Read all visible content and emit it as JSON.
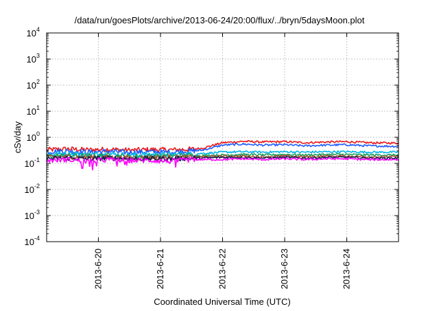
{
  "chart_data": {
    "type": "line",
    "title": "/data/run/goesPlots/archive/2013-06-24/20:00/flux/../bryn/5daysMoon.plot",
    "xlabel": "Coordinated Universal Time (UTC)",
    "ylabel": "cSv/day",
    "yscale": "log",
    "ylim": [
      0.0001,
      10000
    ],
    "y_ticks": [
      {
        "base": "10",
        "exp": "-4",
        "value": 0.0001
      },
      {
        "base": "10",
        "exp": "-3",
        "value": 0.001
      },
      {
        "base": "10",
        "exp": "-2",
        "value": 0.01
      },
      {
        "base": "10",
        "exp": "-1",
        "value": 0.1
      },
      {
        "base": "10",
        "exp": "0",
        "value": 1
      },
      {
        "base": "10",
        "exp": "1",
        "value": 10
      },
      {
        "base": "10",
        "exp": "2",
        "value": 100
      },
      {
        "base": "10",
        "exp": "3",
        "value": 1000
      },
      {
        "base": "10",
        "exp": "4",
        "value": 10000
      }
    ],
    "xlim": [
      "2013-06-19T04:00",
      "2013-06-24T20:00"
    ],
    "x_ticks": [
      {
        "label": "2013-6-20",
        "value": "2013-06-20T00:00"
      },
      {
        "label": "2013-6-21",
        "value": "2013-06-21T00:00"
      },
      {
        "label": "2013-6-22",
        "value": "2013-06-22T00:00"
      },
      {
        "label": "2013-6-23",
        "value": "2013-06-23T00:00"
      },
      {
        "label": "2013-6-24",
        "value": "2013-06-24T00:00"
      }
    ],
    "grid": true,
    "legend": "none",
    "x": [
      "2013-06-19T04:00",
      "2013-06-19T12:00",
      "2013-06-19T20:00",
      "2013-06-20T04:00",
      "2013-06-20T12:00",
      "2013-06-20T20:00",
      "2013-06-21T04:00",
      "2013-06-21T12:00",
      "2013-06-21T16:00",
      "2013-06-22T00:00",
      "2013-06-22T08:00",
      "2013-06-22T16:00",
      "2013-06-23T00:00",
      "2013-06-23T08:00",
      "2013-06-23T16:00",
      "2013-06-24T00:00",
      "2013-06-24T08:00",
      "2013-06-24T20:00"
    ],
    "series": [
      {
        "color": "#e8171b",
        "values": [
          0.33,
          0.36,
          0.33,
          0.35,
          0.32,
          0.34,
          0.33,
          0.35,
          0.38,
          0.62,
          0.7,
          0.66,
          0.68,
          0.62,
          0.66,
          0.68,
          0.62,
          0.6
        ]
      },
      {
        "color": "#1f5cff",
        "values": [
          0.28,
          0.3,
          0.27,
          0.29,
          0.26,
          0.28,
          0.27,
          0.3,
          0.32,
          0.5,
          0.55,
          0.5,
          0.52,
          0.47,
          0.5,
          0.52,
          0.47,
          0.45
        ]
      },
      {
        "color": "#00b5e6",
        "values": [
          0.22,
          0.24,
          0.22,
          0.23,
          0.21,
          0.22,
          0.22,
          0.23,
          0.24,
          0.27,
          0.28,
          0.27,
          0.28,
          0.27,
          0.28,
          0.28,
          0.27,
          0.27
        ]
      },
      {
        "color": "#1b9e5a",
        "values": [
          0.19,
          0.2,
          0.19,
          0.2,
          0.18,
          0.19,
          0.19,
          0.2,
          0.2,
          0.21,
          0.22,
          0.21,
          0.22,
          0.21,
          0.22,
          0.22,
          0.21,
          0.21
        ]
      },
      {
        "color": "#a0522d",
        "values": [
          0.17,
          0.18,
          0.17,
          0.17,
          0.16,
          0.17,
          0.17,
          0.17,
          0.18,
          0.19,
          0.19,
          0.18,
          0.19,
          0.18,
          0.19,
          0.19,
          0.18,
          0.18
        ]
      },
      {
        "color": "#1a1a50",
        "values": [
          0.15,
          0.16,
          0.15,
          0.16,
          0.15,
          0.15,
          0.15,
          0.16,
          0.16,
          0.17,
          0.17,
          0.16,
          0.17,
          0.16,
          0.17,
          0.17,
          0.16,
          0.16
        ]
      },
      {
        "color": "#ff00ff",
        "values": [
          0.13,
          0.14,
          0.12,
          0.14,
          0.13,
          0.13,
          0.12,
          0.14,
          0.14,
          0.14,
          0.15,
          0.14,
          0.15,
          0.14,
          0.15,
          0.15,
          0.14,
          0.14
        ]
      }
    ]
  }
}
